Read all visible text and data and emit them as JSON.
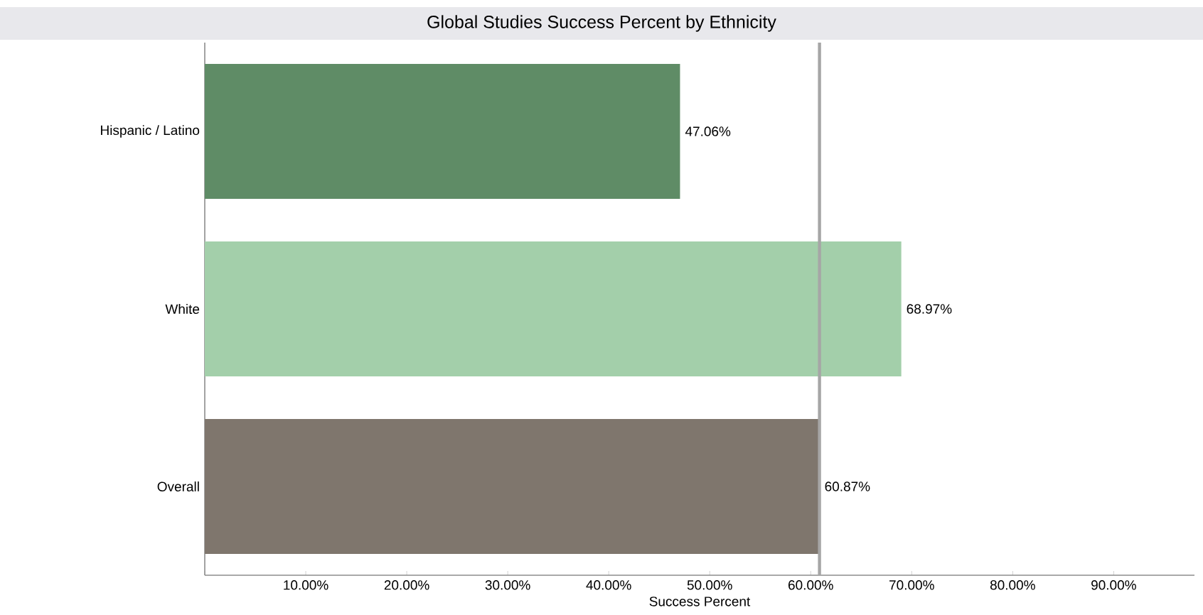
{
  "chart_data": {
    "type": "bar",
    "orientation": "horizontal",
    "title": "Global Studies Success Percent by Ethnicity",
    "xlabel": "Success Percent",
    "categories": [
      "Hispanic / Latino",
      "White",
      "Overall"
    ],
    "values": [
      47.06,
      68.97,
      60.87
    ],
    "colors": [
      "#5f8c66",
      "#a3cfaa",
      "#7f766d"
    ],
    "value_labels": [
      "47.06%",
      "68.97%",
      "60.87%"
    ],
    "xlim": [
      0,
      98
    ],
    "xticks": [
      {
        "value": 0,
        "label": null
      },
      {
        "value": 10,
        "label": "10.00%"
      },
      {
        "value": 20,
        "label": "20.00%"
      },
      {
        "value": 30,
        "label": "30.00%"
      },
      {
        "value": 40,
        "label": "40.00%"
      },
      {
        "value": 50,
        "label": "50.00%"
      },
      {
        "value": 60,
        "label": "60.00%"
      },
      {
        "value": 70,
        "label": "70.00%"
      },
      {
        "value": 80,
        "label": "80.00%"
      },
      {
        "value": 90,
        "label": "90.00%"
      }
    ],
    "ref_lines": [
      {
        "axis": "x",
        "value": 60.87,
        "color": "#a6a6a6"
      }
    ],
    "grid": false
  }
}
